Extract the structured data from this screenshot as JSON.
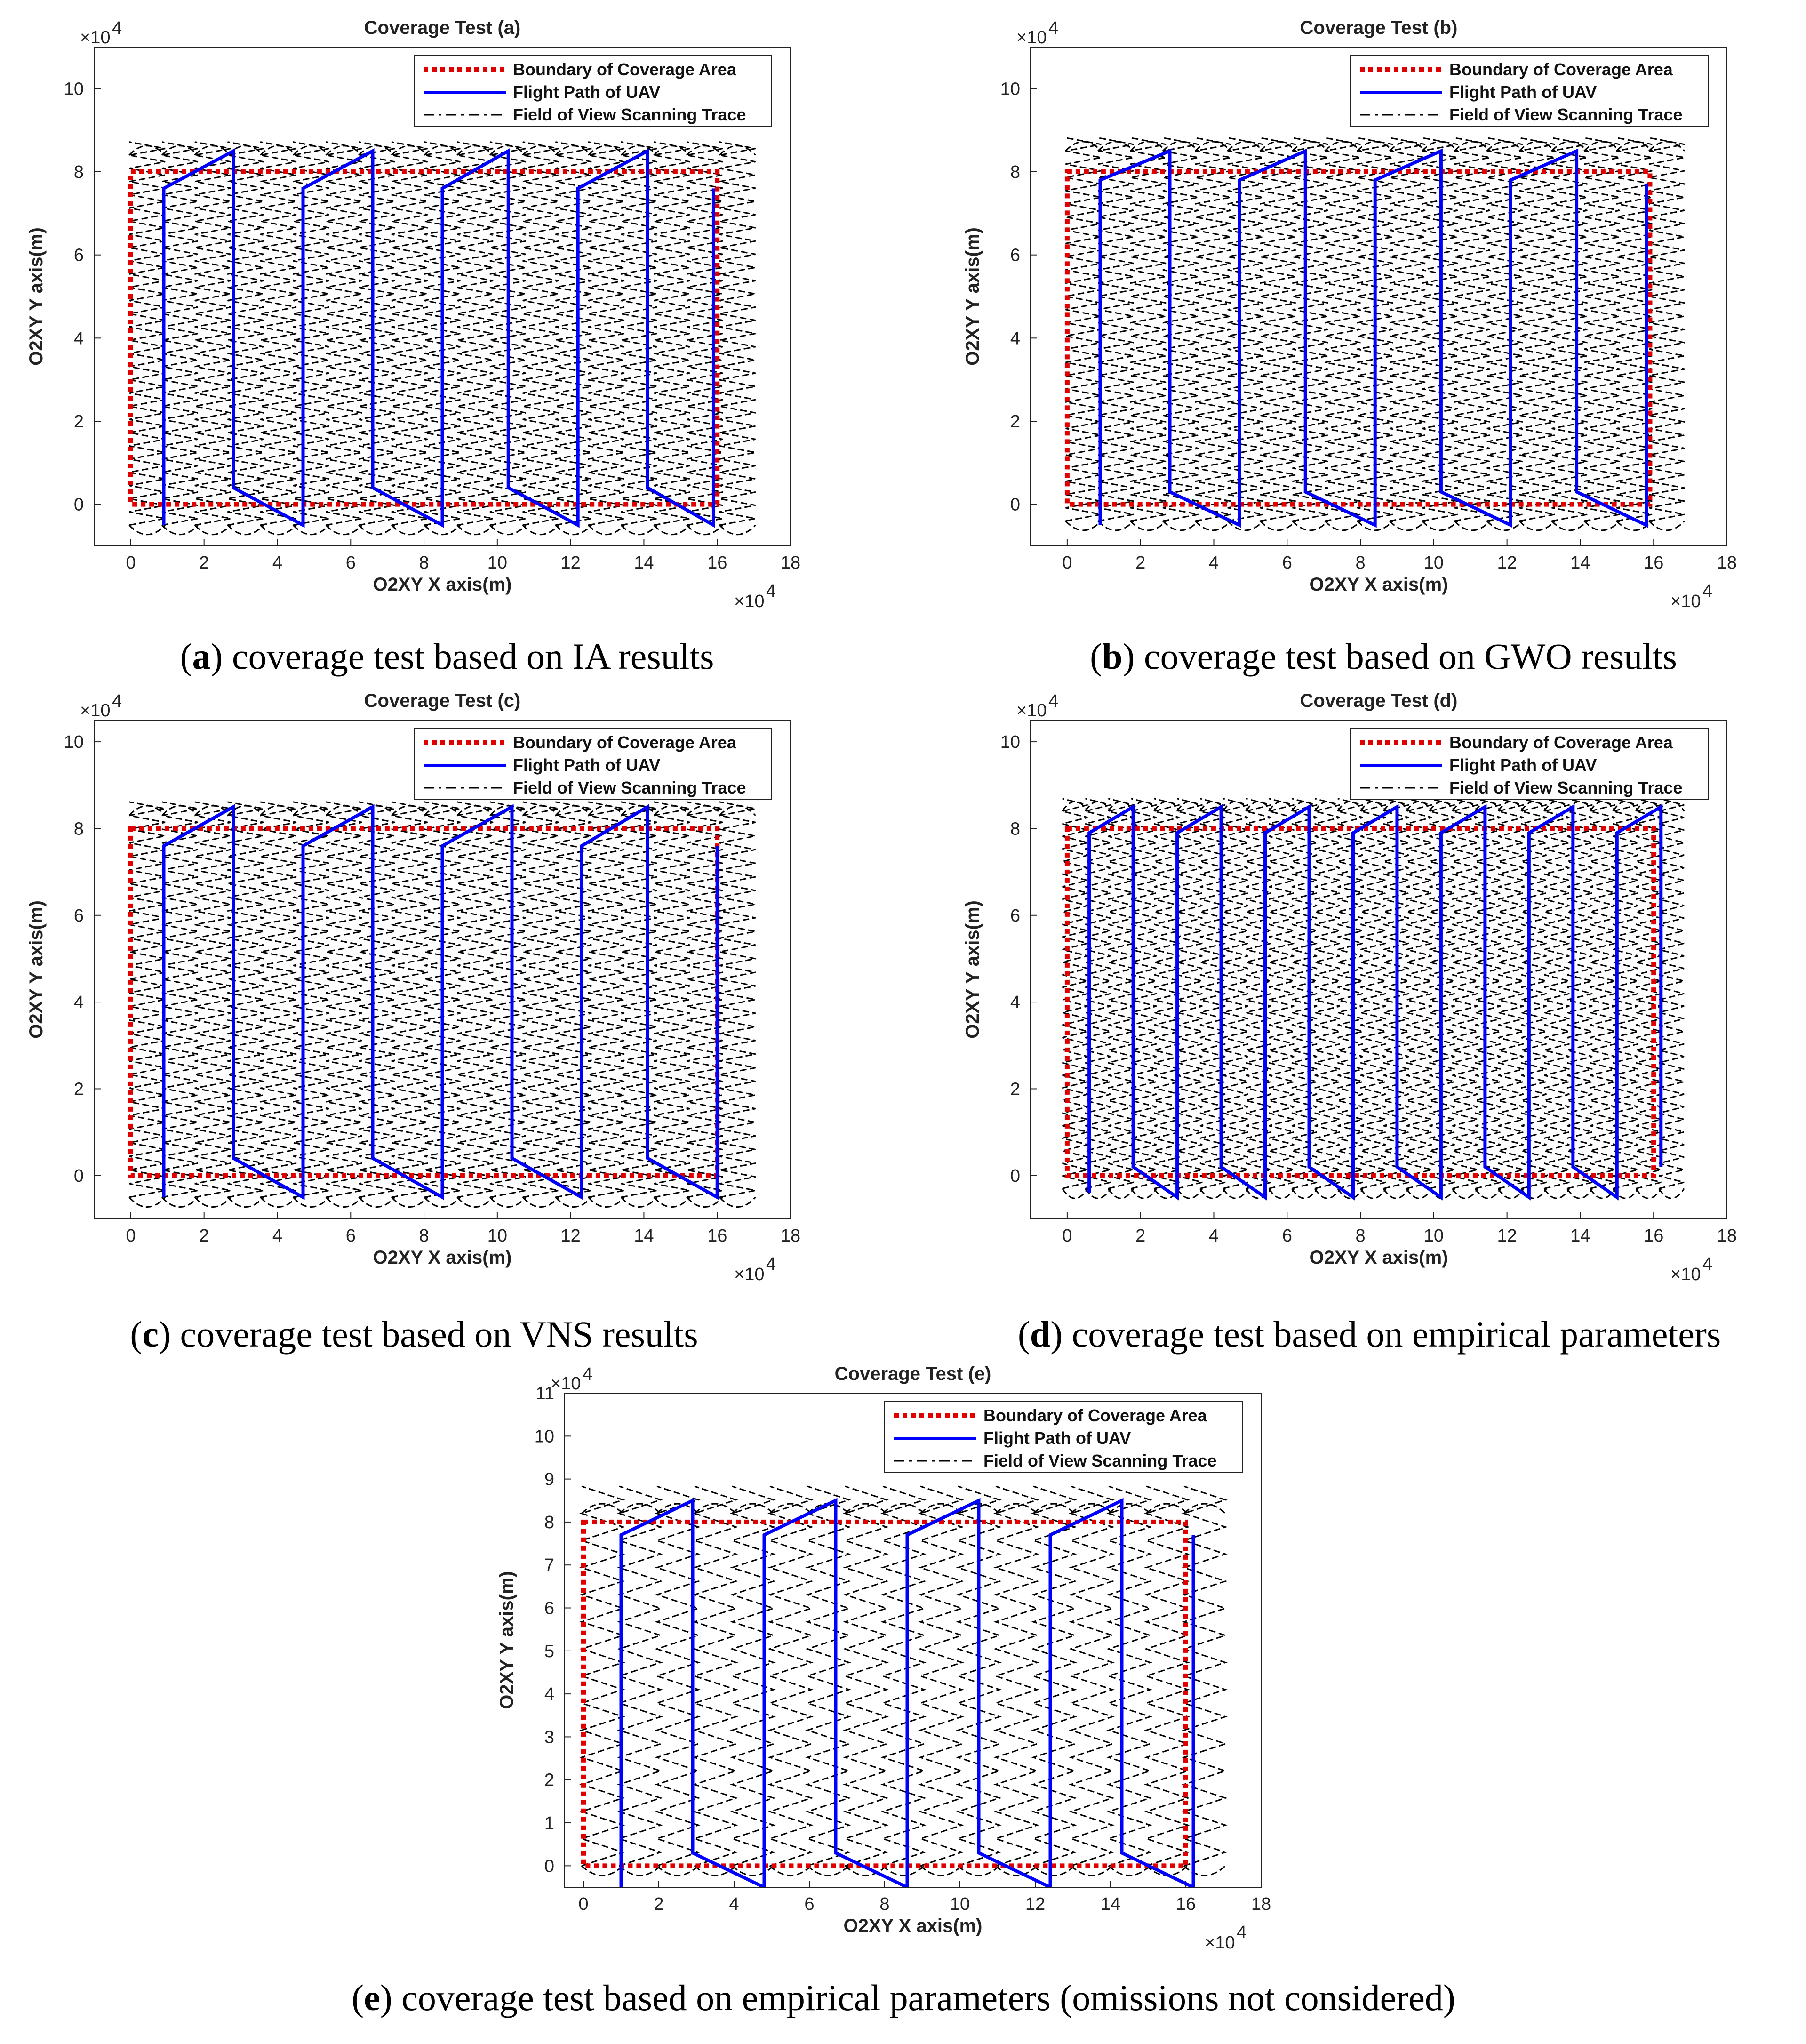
{
  "charts": [
    {
      "id": "a",
      "type": "line",
      "title": "Coverage Test (a)",
      "xlabel": "O2XY X axis(m)",
      "ylabel": "O2XY Y axis(m)",
      "x_multiplier": "×10",
      "x_exp": "4",
      "y_multiplier": "×10",
      "y_exp": "4",
      "xlim": [
        -1,
        18
      ],
      "ylim": [
        -1,
        11
      ],
      "xticks": [
        0,
        2,
        4,
        6,
        8,
        10,
        12,
        14,
        16,
        18
      ],
      "yticks": [
        0,
        2,
        4,
        6,
        8,
        10
      ],
      "legend": [
        "Boundary of Coverage Area",
        "Flight Path of UAV",
        "Field of View Scanning Trace"
      ],
      "legend_position": "top-right",
      "boundary": {
        "x": [
          0,
          16
        ],
        "y": [
          0,
          8
        ]
      },
      "flight_path": [
        [
          0.9,
          -0.5
        ],
        [
          0.9,
          7.6
        ],
        [
          2.8,
          8.5
        ],
        [
          2.8,
          0.4
        ],
        [
          4.7,
          -0.5
        ],
        [
          4.7,
          7.6
        ],
        [
          6.6,
          8.5
        ],
        [
          6.6,
          0.4
        ],
        [
          8.5,
          -0.5
        ],
        [
          8.5,
          7.6
        ],
        [
          10.3,
          8.5
        ],
        [
          10.3,
          0.4
        ],
        [
          12.2,
          -0.5
        ],
        [
          12.2,
          7.6
        ],
        [
          14.1,
          8.5
        ],
        [
          14.1,
          0.4
        ],
        [
          15.9,
          -0.5
        ],
        [
          15.9,
          7.6
        ]
      ],
      "fov_columns": 19,
      "fov_x_start": 0,
      "fov_x_end": 17,
      "fov_y_start": -0.5,
      "fov_y_end": 8.4,
      "fov_rows": 28,
      "caption_letter": "a",
      "caption": ") coverage test based on IA results"
    },
    {
      "id": "b",
      "type": "line",
      "title": "Coverage Test (b)",
      "xlabel": "O2XY X axis(m)",
      "ylabel": "O2XY Y axis(m)",
      "x_multiplier": "×10",
      "x_exp": "4",
      "y_multiplier": "×10",
      "y_exp": "4",
      "xlim": [
        -1,
        18
      ],
      "ylim": [
        -1,
        11
      ],
      "xticks": [
        0,
        2,
        4,
        6,
        8,
        10,
        12,
        14,
        16,
        18
      ],
      "yticks": [
        0,
        2,
        4,
        6,
        8,
        10
      ],
      "legend": [
        "Boundary of Coverage Area",
        "Flight Path of UAV",
        "Field of View Scanning Trace"
      ],
      "legend_position": "top-right",
      "boundary": {
        "x": [
          0,
          15.9
        ],
        "y": [
          0,
          8
        ]
      },
      "flight_path": [
        [
          0.9,
          -0.5
        ],
        [
          0.9,
          7.8
        ],
        [
          2.8,
          8.5
        ],
        [
          2.8,
          0.3
        ],
        [
          4.7,
          -0.5
        ],
        [
          4.7,
          7.8
        ],
        [
          6.5,
          8.5
        ],
        [
          6.5,
          0.3
        ],
        [
          8.4,
          -0.5
        ],
        [
          8.4,
          7.8
        ],
        [
          10.2,
          8.5
        ],
        [
          10.2,
          0.3
        ],
        [
          12.1,
          -0.5
        ],
        [
          12.1,
          7.8
        ],
        [
          13.9,
          8.5
        ],
        [
          13.9,
          0.3
        ],
        [
          15.8,
          -0.5
        ],
        [
          15.8,
          7.7
        ]
      ],
      "fov_columns": 19,
      "fov_x_start": 0,
      "fov_x_end": 16.8,
      "fov_y_start": -0.4,
      "fov_y_end": 8.5,
      "fov_rows": 28,
      "caption_letter": "b",
      "caption": ") coverage test based on GWO results"
    },
    {
      "id": "c",
      "type": "line",
      "title": "Coverage Test (c)",
      "xlabel": "O2XY X axis(m)",
      "ylabel": "O2XY Y axis(m)",
      "x_multiplier": "×10",
      "x_exp": "4",
      "y_multiplier": "×10",
      "y_exp": "4",
      "xlim": [
        -1,
        18
      ],
      "ylim": [
        -1,
        10.5
      ],
      "xticks": [
        0,
        2,
        4,
        6,
        8,
        10,
        12,
        14,
        16,
        18
      ],
      "yticks": [
        0,
        2,
        4,
        6,
        8,
        10
      ],
      "legend": [
        "Boundary of Coverage Area",
        "Flight Path of UAV",
        "Field of View Scanning Trace"
      ],
      "legend_position": "top-right",
      "boundary": {
        "x": [
          0,
          16
        ],
        "y": [
          0,
          8
        ]
      },
      "flight_path": [
        [
          0.9,
          -0.5
        ],
        [
          0.9,
          7.6
        ],
        [
          2.8,
          8.5
        ],
        [
          2.8,
          0.4
        ],
        [
          4.7,
          -0.5
        ],
        [
          4.7,
          7.6
        ],
        [
          6.6,
          8.5
        ],
        [
          6.6,
          0.4
        ],
        [
          8.5,
          -0.5
        ],
        [
          8.5,
          7.6
        ],
        [
          10.4,
          8.5
        ],
        [
          10.4,
          0.4
        ],
        [
          12.3,
          -0.5
        ],
        [
          12.3,
          7.6
        ],
        [
          14.1,
          8.5
        ],
        [
          14.1,
          0.4
        ],
        [
          16,
          -0.5
        ],
        [
          16,
          7.6
        ]
      ],
      "fov_columns": 19,
      "fov_x_start": 0,
      "fov_x_end": 17,
      "fov_y_start": -0.5,
      "fov_y_end": 8.3,
      "fov_rows": 28,
      "caption_letter": "c",
      "caption": ") coverage test based on VNS results"
    },
    {
      "id": "d",
      "type": "line",
      "title": "Coverage Test (d)",
      "xlabel": "O2XY X axis(m)",
      "ylabel": "O2XY Y axis(m)",
      "x_multiplier": "×10",
      "x_exp": "4",
      "y_multiplier": "×10",
      "y_exp": "4",
      "xlim": [
        -1,
        18
      ],
      "ylim": [
        -1,
        10.5
      ],
      "xticks": [
        0,
        2,
        4,
        6,
        8,
        10,
        12,
        14,
        16,
        18
      ],
      "yticks": [
        0,
        2,
        4,
        6,
        8,
        10
      ],
      "legend": [
        "Boundary of Coverage Area",
        "Flight Path of UAV",
        "Field of View Scanning Trace"
      ],
      "legend_position": "top-right",
      "boundary": {
        "x": [
          0,
          16
        ],
        "y": [
          0,
          8
        ]
      },
      "flight_path": [
        [
          0.6,
          -0.4
        ],
        [
          0.6,
          7.9
        ],
        [
          1.8,
          8.5
        ],
        [
          1.8,
          0.2
        ],
        [
          3,
          -0.5
        ],
        [
          3,
          7.9
        ],
        [
          4.2,
          8.5
        ],
        [
          4.2,
          0.2
        ],
        [
          5.4,
          -0.5
        ],
        [
          5.4,
          7.9
        ],
        [
          6.6,
          8.5
        ],
        [
          6.6,
          0.2
        ],
        [
          7.8,
          -0.5
        ],
        [
          7.8,
          7.9
        ],
        [
          9,
          8.5
        ],
        [
          9,
          0.2
        ],
        [
          10.2,
          -0.5
        ],
        [
          10.2,
          7.9
        ],
        [
          11.4,
          8.5
        ],
        [
          11.4,
          0.2
        ],
        [
          12.6,
          -0.5
        ],
        [
          12.6,
          7.9
        ],
        [
          13.8,
          8.5
        ],
        [
          13.8,
          0.2
        ],
        [
          15,
          -0.5
        ],
        [
          15,
          7.9
        ],
        [
          16.2,
          8.5
        ],
        [
          16.2,
          0.2
        ]
      ],
      "fov_columns": 27,
      "fov_x_start": -0.1,
      "fov_x_end": 16.8,
      "fov_y_start": -0.3,
      "fov_y_end": 8.4,
      "fov_rows": 30,
      "caption_letter": "d",
      "caption": ") coverage test based on empirical parameters"
    },
    {
      "id": "e",
      "type": "line",
      "title": "Coverage Test (e)",
      "xlabel": "O2XY X axis(m)",
      "ylabel": "O2XY Y axis(m)",
      "x_multiplier": "×10",
      "x_exp": "4",
      "y_multiplier": "×10",
      "y_exp": "4",
      "xlim": [
        -0.5,
        18
      ],
      "ylim": [
        -0.5,
        11
      ],
      "xticks": [
        0,
        2,
        4,
        6,
        8,
        10,
        12,
        14,
        16,
        18
      ],
      "yticks": [
        0,
        1,
        2,
        3,
        4,
        5,
        6,
        7,
        8,
        9,
        10,
        11
      ],
      "legend": [
        "Boundary of Coverage Area",
        "Flight Path of UAV",
        "Field of View Scanning Trace"
      ],
      "legend_position": "top-right",
      "boundary": {
        "x": [
          0,
          16
        ],
        "y": [
          0,
          8
        ]
      },
      "flight_path": [
        [
          1,
          -0.5
        ],
        [
          1,
          7.7
        ],
        [
          2.9,
          8.5
        ],
        [
          2.9,
          0.3
        ],
        [
          4.8,
          -0.5
        ],
        [
          4.8,
          7.7
        ],
        [
          6.7,
          8.5
        ],
        [
          6.7,
          0.3
        ],
        [
          8.6,
          -0.5
        ],
        [
          8.6,
          7.7
        ],
        [
          10.5,
          8.5
        ],
        [
          10.5,
          0.3
        ],
        [
          12.4,
          -0.5
        ],
        [
          12.4,
          7.7
        ],
        [
          14.3,
          8.5
        ],
        [
          14.3,
          0.3
        ],
        [
          16.2,
          -0.5
        ],
        [
          16.2,
          7.7
        ]
      ],
      "fov_columns": 17,
      "fov_x_start": 0,
      "fov_x_end": 17,
      "fov_y_start": 0,
      "fov_y_end": 8.2,
      "fov_rows": 13,
      "caption_letter": "e",
      "caption": ") coverage test based on empirical parameters (omissions not considered)"
    }
  ]
}
